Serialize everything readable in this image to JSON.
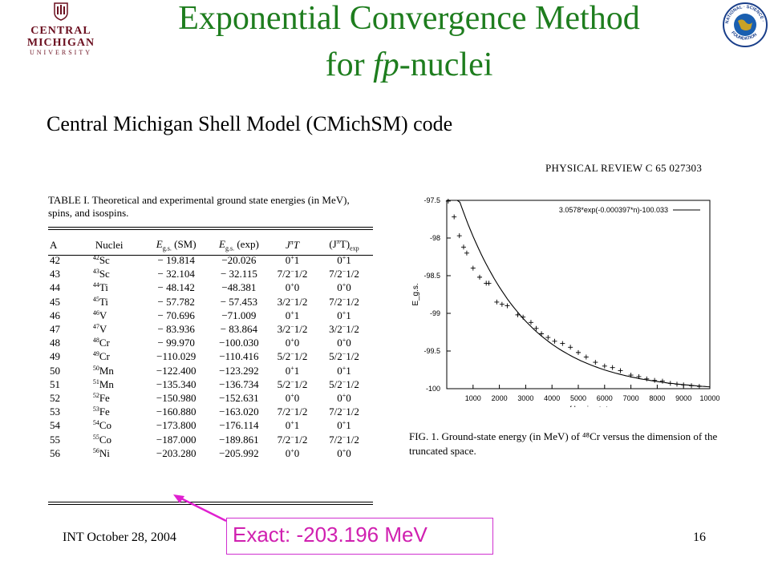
{
  "logos": {
    "cmu_name": "CENTRAL MICHIGAN",
    "cmu_sub": "UNIVERSITY",
    "nsf_text": "NATIONAL SCIENCE FOUNDATION"
  },
  "title": {
    "line1": "Exponential Convergence Method",
    "line2_prefix": "for ",
    "line2_italic": "fp",
    "line2_suffix": "-nuclei"
  },
  "subtitle": "Central Michigan Shell Model (CMichSM) code",
  "journal_header": "PHYSICAL REVIEW C 65 027303",
  "table": {
    "caption": "TABLE I. Theoretical and experimental ground state energies (in MeV), spins, and isospins.",
    "headers": {
      "a": "A",
      "nuclei": "Nuclei",
      "e_sm": "E",
      "e_sm_sub": "g.s.",
      "e_sm_tail": " (SM)",
      "e_exp": "E",
      "e_exp_sub": "g.s.",
      "e_exp_tail": " (exp)",
      "jt": "J",
      "jt_sup": "π",
      "jt_tail": "T",
      "jte": "(J",
      "jte_sup": "π",
      "jte_tail": "T)",
      "jte_sub": "exp"
    },
    "rows": [
      {
        "a": "42",
        "mass": "42",
        "el": "Sc",
        "sm": "− 19.814",
        "exp": "−20.026",
        "jt": "0",
        "jtsup": "+",
        "jtt": "1",
        "jte": "0",
        "jtesup": "+",
        "jtet": "1"
      },
      {
        "a": "43",
        "mass": "43",
        "el": "Sc",
        "sm": "− 32.104",
        "exp": "− 32.115",
        "jt": "7/2",
        "jtsup": "−",
        "jtt": "1/2",
        "jte": "7/2",
        "jtesup": "−",
        "jtet": "1/2"
      },
      {
        "a": "44",
        "mass": "44",
        "el": "Ti",
        "sm": "− 48.142",
        "exp": "−48.381",
        "jt": "0",
        "jtsup": "+",
        "jtt": "0",
        "jte": "0",
        "jtesup": "+",
        "jtet": "0"
      },
      {
        "a": "45",
        "mass": "45",
        "el": "Ti",
        "sm": "− 57.782",
        "exp": "− 57.453",
        "jt": "3/2",
        "jtsup": "−",
        "jtt": "1/2",
        "jte": "7/2",
        "jtesup": "−",
        "jtet": "1/2"
      },
      {
        "a": "46",
        "mass": "46",
        "el": "V",
        "sm": "− 70.696",
        "exp": "−71.009",
        "jt": "0",
        "jtsup": "+",
        "jtt": "1",
        "jte": "0",
        "jtesup": "+",
        "jtet": "1"
      },
      {
        "a": "47",
        "mass": "47",
        "el": "V",
        "sm": "− 83.936",
        "exp": "− 83.864",
        "jt": "3/2",
        "jtsup": "−",
        "jtt": "1/2",
        "jte": "3/2",
        "jtesup": "−",
        "jtet": "1/2"
      },
      {
        "a": "48",
        "mass": "48",
        "el": "Cr",
        "sm": "− 99.970",
        "exp": "−100.030",
        "jt": "0",
        "jtsup": "+",
        "jtt": "0",
        "jte": "0",
        "jtesup": "+",
        "jtet": "0"
      },
      {
        "a": "49",
        "mass": "49",
        "el": "Cr",
        "sm": "−110.029",
        "exp": "−110.416",
        "jt": "5/2",
        "jtsup": "−",
        "jtt": "1/2",
        "jte": "5/2",
        "jtesup": "−",
        "jtet": "1/2"
      },
      {
        "a": "50",
        "mass": "50",
        "el": "Mn",
        "sm": "−122.400",
        "exp": "−123.292",
        "jt": "0",
        "jtsup": "+",
        "jtt": "1",
        "jte": "0",
        "jtesup": "+",
        "jtet": "1"
      },
      {
        "a": "51",
        "mass": "51",
        "el": "Mn",
        "sm": "−135.340",
        "exp": "−136.734",
        "jt": "5/2",
        "jtsup": "−",
        "jtt": "1/2",
        "jte": "5/2",
        "jtesup": "−",
        "jtet": "1/2"
      },
      {
        "a": "52",
        "mass": "52",
        "el": "Fe",
        "sm": "−150.980",
        "exp": "−152.631",
        "jt": "0",
        "jtsup": "+",
        "jtt": "0",
        "jte": "0",
        "jtesup": "+",
        "jtet": "0"
      },
      {
        "a": "53",
        "mass": "53",
        "el": "Fe",
        "sm": "−160.880",
        "exp": "−163.020",
        "jt": "7/2",
        "jtsup": "−",
        "jtt": "1/2",
        "jte": "7/2",
        "jtesup": "−",
        "jtet": "1/2"
      },
      {
        "a": "54",
        "mass": "54",
        "el": "Co",
        "sm": "−173.800",
        "exp": "−176.114",
        "jt": "0",
        "jtsup": "+",
        "jtt": "1",
        "jte": "0",
        "jtesup": "+",
        "jtet": "1"
      },
      {
        "a": "55",
        "mass": "55",
        "el": "Co",
        "sm": "−187.000",
        "exp": "−189.861",
        "jt": "7/2",
        "jtsup": "−",
        "jtt": "1/2",
        "jte": "7/2",
        "jtesup": "−",
        "jtet": "1/2"
      },
      {
        "a": "56",
        "mass": "56",
        "el": "Ni",
        "sm": "−203.280",
        "exp": "−205.992",
        "jt": "0",
        "jtsup": "+",
        "jtt": "0",
        "jte": "0",
        "jtesup": "+",
        "jtet": "0"
      }
    ]
  },
  "figure_caption": "FIG. 1. Ground-state energy (in MeV) of ⁴⁸Cr versus the dimension of the truncated space.",
  "footer": {
    "left": "INT October 28, 2004",
    "page": "16"
  },
  "annotation": {
    "text": "Exact: -203.196 MeV",
    "color": "#d020b0"
  },
  "chart_data": {
    "type": "scatter",
    "title": "",
    "xlabel": "n = no of basis states",
    "ylabel": "E_g.s.",
    "xlim": [
      0,
      10000
    ],
    "ylim": [
      -100,
      -97.5
    ],
    "xticks": [
      "1000",
      "2000",
      "3000",
      "4000",
      "5000",
      "6000",
      "7000",
      "8000",
      "9000",
      "10000"
    ],
    "yticks": [
      "-97.5",
      "-98",
      "-98.5",
      "-99",
      "-99.5",
      "-100"
    ],
    "legend": {
      "label": "3.0578*exp(-0.000397*n)-100.033",
      "position": "top-right"
    },
    "fit": {
      "a": 3.0578,
      "b": 0.000397,
      "c": -100.033
    },
    "series": [
      {
        "name": "",
        "points": [
          [
            56,
            -97.51
          ],
          [
            280,
            -97.72
          ],
          [
            480,
            -97.97
          ],
          [
            640,
            -98.12
          ],
          [
            760,
            -98.2
          ],
          [
            1000,
            -98.4
          ],
          [
            1250,
            -98.52
          ],
          [
            1500,
            -98.6
          ],
          [
            1600,
            -98.6
          ],
          [
            1900,
            -98.85
          ],
          [
            2100,
            -98.88
          ],
          [
            2300,
            -98.9
          ],
          [
            2700,
            -99.02
          ],
          [
            2900,
            -99.05
          ],
          [
            3200,
            -99.12
          ],
          [
            3400,
            -99.2
          ],
          [
            3600,
            -99.27
          ],
          [
            3850,
            -99.32
          ],
          [
            4100,
            -99.37
          ],
          [
            4400,
            -99.4
          ],
          [
            4700,
            -99.45
          ],
          [
            5000,
            -99.52
          ],
          [
            5300,
            -99.58
          ],
          [
            5650,
            -99.65
          ],
          [
            6000,
            -99.7
          ],
          [
            6300,
            -99.72
          ],
          [
            6600,
            -99.76
          ],
          [
            7000,
            -99.82
          ],
          [
            7300,
            -99.84
          ],
          [
            7600,
            -99.87
          ],
          [
            7900,
            -99.89
          ],
          [
            8200,
            -99.9
          ],
          [
            8500,
            -99.93
          ],
          [
            8750,
            -99.94
          ],
          [
            9000,
            -99.95
          ],
          [
            9300,
            -99.96
          ],
          [
            9600,
            -99.97
          ]
        ]
      }
    ]
  }
}
